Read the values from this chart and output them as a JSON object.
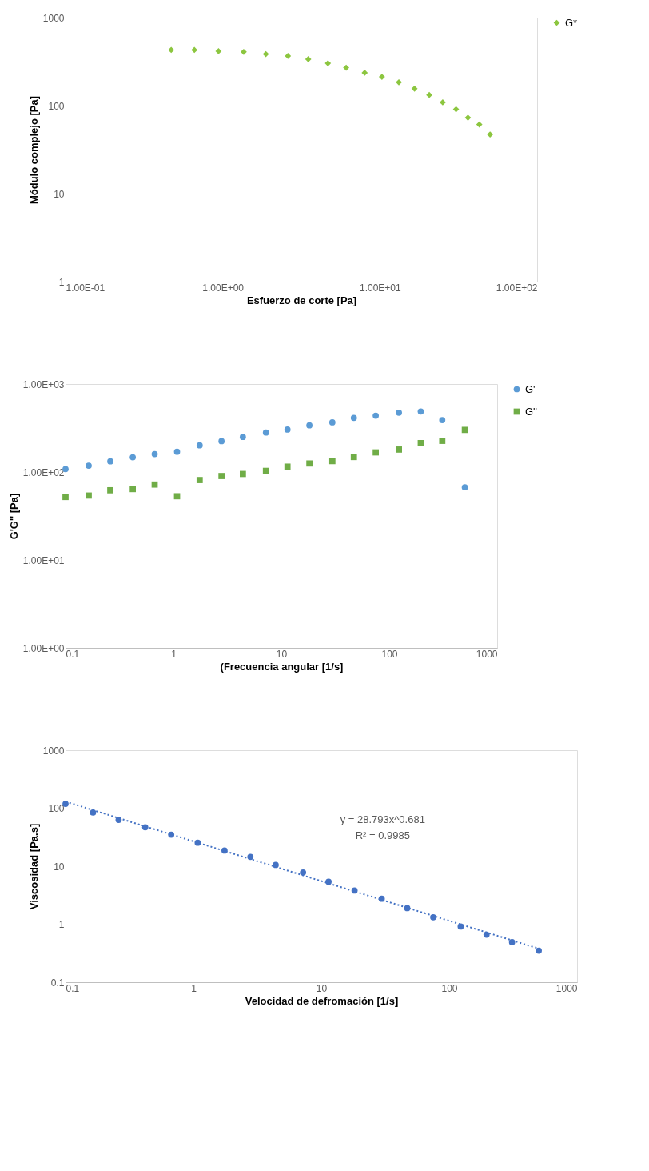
{
  "chart_data": [
    {
      "type": "scatter",
      "xlabel": "Esfuerzo de corte [Pa]",
      "ylabel": "Módulo complejo [Pa]",
      "log": "xy",
      "xlim": [
        0.1,
        100
      ],
      "ylim": [
        1,
        1000
      ],
      "xticks": [
        {
          "value": 0.1,
          "label": "1.00E-01"
        },
        {
          "value": 1,
          "label": "1.00E+00"
        },
        {
          "value": 10,
          "label": "1.00E+01"
        },
        {
          "value": 100,
          "label": "1.00E+02"
        }
      ],
      "yticks": [
        1,
        10,
        100,
        1000
      ],
      "grid": false,
      "legend": "right",
      "series": [
        {
          "name": "G*",
          "color": "#8cc63f",
          "marker": "diamond",
          "x": [
            0.47,
            0.66,
            0.94,
            1.36,
            1.88,
            2.6,
            3.5,
            4.67,
            6.1,
            8.0,
            10.3,
            13.2,
            16.6,
            20.6,
            25.1,
            30.5,
            36.3,
            42.9,
            50.2
          ],
          "values": [
            429,
            429,
            416,
            408,
            385,
            367,
            337,
            303,
            270,
            236,
            212,
            184,
            156,
            132,
            109,
            91,
            73,
            61,
            47
          ]
        }
      ]
    },
    {
      "type": "scatter",
      "xlabel": "(Frecuencia angular [1/s]",
      "ylabel": "G'G'' [Pa]",
      "log": "xy",
      "xlim": [
        0.1,
        1000
      ],
      "ylim": [
        1,
        1000
      ],
      "xticks": [
        0.1,
        1,
        10,
        100,
        1000
      ],
      "yticks": [
        {
          "value": 1,
          "label": "1.00E+00"
        },
        {
          "value": 10,
          "label": "1.00E+01"
        },
        {
          "value": 100,
          "label": "1.00E+02"
        },
        {
          "value": 1000,
          "label": "1.00E+03"
        }
      ],
      "grid": false,
      "legend": "right",
      "x": [
        0.1,
        0.164,
        0.26,
        0.42,
        0.67,
        1.08,
        1.75,
        2.79,
        4.4,
        7.2,
        11.4,
        18.2,
        29.7,
        47,
        75,
        123,
        196,
        310,
        502
      ],
      "series": [
        {
          "name": "G'",
          "color": "#5b9bd5",
          "marker": "circle",
          "values": [
            108,
            118,
            132,
            147,
            160,
            170,
            201,
            224,
            250,
            281,
            304,
            339,
            367,
            412,
            437,
            473,
            488,
            389,
            67
          ]
        },
        {
          "name": "G''",
          "color": "#70ad47",
          "marker": "square",
          "values": [
            52,
            54,
            62,
            64,
            72,
            53,
            81,
            90,
            95,
            103,
            115,
            125,
            133,
            148,
            167,
            180,
            213,
            226,
            301
          ]
        }
      ]
    },
    {
      "type": "scatter",
      "xlabel": "Velocidad de defromación [1/s]",
      "ylabel": "Viscosidad [Pa.s]",
      "log": "xy",
      "xlim": [
        0.1,
        1000
      ],
      "ylim": [
        0.1,
        1000
      ],
      "xticks": [
        0.1,
        1,
        10,
        100,
        1000
      ],
      "yticks": [
        0.1,
        1,
        10,
        100,
        1000
      ],
      "grid": false,
      "legend": false,
      "annotations": [
        "y = 28.793x^0.681",
        "R² = 0.9985"
      ],
      "series": [
        {
          "color": "#4472c4",
          "marker": "circle",
          "x": [
            0.1,
            0.164,
            0.26,
            0.42,
            0.67,
            1.08,
            1.75,
            2.79,
            4.4,
            7.2,
            11.4,
            18.2,
            29.7,
            47,
            75,
            123,
            196,
            310,
            502
          ],
          "values": [
            119,
            84,
            63,
            47,
            35,
            25.4,
            18.6,
            14.5,
            10.5,
            7.8,
            5.4,
            3.8,
            2.75,
            1.89,
            1.32,
            0.91,
            0.66,
            0.49,
            0.35
          ]
        },
        {
          "type": "line",
          "color": "#4472c4",
          "line_style": "dotted",
          "x": [
            0.1,
            520
          ],
          "values": [
            130,
            0.37
          ]
        }
      ]
    }
  ]
}
